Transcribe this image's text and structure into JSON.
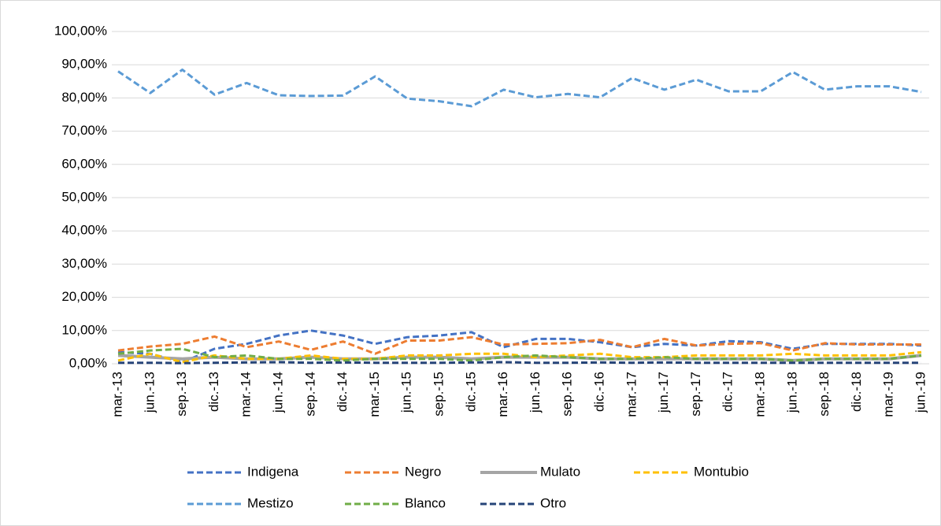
{
  "chart_data": {
    "type": "line",
    "categories": [
      "mar.-13",
      "jun.-13",
      "sep.-13",
      "dic.-13",
      "mar.-14",
      "jun.-14",
      "sep.-14",
      "dic.-14",
      "mar.-15",
      "jun.-15",
      "sep.-15",
      "dic.-15",
      "mar.-16",
      "jun.-16",
      "sep.-16",
      "dic.-16",
      "mar.-17",
      "jun.-17",
      "sep.-17",
      "dic.-17",
      "mar.-18",
      "jun.-18",
      "sep.-18",
      "dic.-18",
      "mar.-19",
      "jun.-19"
    ],
    "series": [
      {
        "name": "Indigena",
        "color": "#4472c4",
        "line_style": "dashed",
        "values": [
          3.5,
          3,
          0.5,
          4.5,
          6,
          8.5,
          10,
          8.5,
          6,
          8,
          8.5,
          9.5,
          5,
          7.5,
          7.5,
          6.5,
          5,
          6,
          5.5,
          6.8,
          6.5,
          4.5,
          6,
          6,
          6,
          5.5
        ]
      },
      {
        "name": "Negro",
        "color": "#ed7d31",
        "line_style": "dashed",
        "values": [
          4,
          5.2,
          6,
          8.2,
          5,
          6.7,
          4.2,
          6.7,
          3,
          7,
          7,
          8,
          5.8,
          6,
          6.2,
          7.2,
          5,
          7.5,
          5.5,
          6,
          6.2,
          4,
          6.2,
          5.8,
          5.8,
          5.8
        ]
      },
      {
        "name": "Mulato",
        "color": "#a5a5a5",
        "line_style": "solid",
        "values": [
          2.5,
          2,
          1.5,
          2,
          1.5,
          1.5,
          2,
          1.5,
          1.5,
          2,
          2,
          1.5,
          2,
          2,
          2,
          1.5,
          1.5,
          1.5,
          1.5,
          1.5,
          1.5,
          1,
          1.5,
          1.5,
          1.5,
          2.5
        ]
      },
      {
        "name": "Montubio",
        "color": "#ffc000",
        "line_style": "dashed",
        "values": [
          1,
          3,
          0.5,
          2.5,
          1.5,
          1.5,
          2.5,
          1.5,
          1.5,
          2.5,
          2.5,
          3,
          3,
          2,
          2.5,
          3,
          2,
          2,
          2.5,
          2.5,
          2.5,
          3,
          2.5,
          2.5,
          2.5,
          3.5
        ]
      },
      {
        "name": "Mestizo",
        "color": "#5b9bd5",
        "line_style": "dashed",
        "values": [
          88,
          81.5,
          88.5,
          81,
          84.5,
          80.8,
          80.6,
          80.7,
          86.5,
          79.8,
          79,
          77.5,
          82.5,
          80.2,
          81.2,
          80.2,
          86,
          82.5,
          85.5,
          82,
          82,
          87.8,
          82.5,
          83.5,
          83.5,
          81.8
        ]
      },
      {
        "name": "Blanco",
        "color": "#70ad47",
        "line_style": "dashed",
        "values": [
          3,
          4,
          4.5,
          2,
          2.5,
          1.5,
          1.5,
          1,
          1.5,
          1.5,
          1.5,
          1,
          2,
          2.5,
          2,
          1.5,
          1.5,
          2,
          1.5,
          1.5,
          1.5,
          1,
          1.5,
          1.5,
          1.5,
          2.5
        ]
      },
      {
        "name": "Otro",
        "color": "#264478",
        "line_style": "dashed",
        "values": [
          0.3,
          0.3,
          0.2,
          0.3,
          0.4,
          0.5,
          0.3,
          0.4,
          0.3,
          0.3,
          0.3,
          0.4,
          0.5,
          0.3,
          0.3,
          0.4,
          0.3,
          0.4,
          0.3,
          0.3,
          0.3,
          0.3,
          0.3,
          0.3,
          0.3,
          0.3
        ]
      }
    ],
    "ylim": [
      0,
      100
    ],
    "yticks": [
      {
        "value": 0,
        "label": "0,00%"
      },
      {
        "value": 10,
        "label": "10,00%"
      },
      {
        "value": 20,
        "label": "20,00%"
      },
      {
        "value": 30,
        "label": "30,00%"
      },
      {
        "value": 40,
        "label": "40,00%"
      },
      {
        "value": 50,
        "label": "50,00%"
      },
      {
        "value": 60,
        "label": "60,00%"
      },
      {
        "value": 70,
        "label": "70,00%"
      },
      {
        "value": 80,
        "label": "80,00%"
      },
      {
        "value": 90,
        "label": "90,00%"
      },
      {
        "value": 100,
        "label": "100,00%"
      }
    ],
    "grid": true,
    "legend": "bottom"
  }
}
